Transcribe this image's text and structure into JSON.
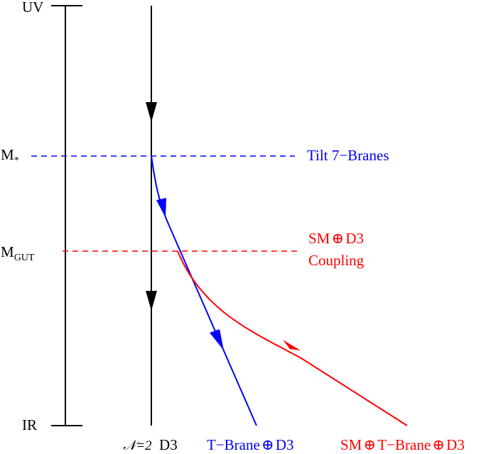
{
  "scale_axis": {
    "top_label": "UV",
    "bottom_label": "IR"
  },
  "levels": {
    "m_star": {
      "label_base": "M",
      "label_sub": "*",
      "annotation": "Tilt 7−Branes"
    },
    "m_gut": {
      "label_base": "M",
      "label_sub": "GUT",
      "annotation_line1_a": "SM",
      "annotation_line1_b": "D3",
      "annotation_line2": "Coupling"
    }
  },
  "flows": {
    "n2_d3": {
      "label_a": "𝒩=2",
      "label_b": "D3"
    },
    "t_brane": {
      "label_a": "T−Brane",
      "label_b": "D3"
    },
    "sm_t_brane": {
      "label_a": "SM",
      "label_b": "T−Brane",
      "label_c": "D3"
    }
  },
  "symbols": {
    "oplus": "⊕"
  },
  "colors": {
    "black": "#000000",
    "blue": "#0000ff",
    "red": "#ff0000"
  }
}
